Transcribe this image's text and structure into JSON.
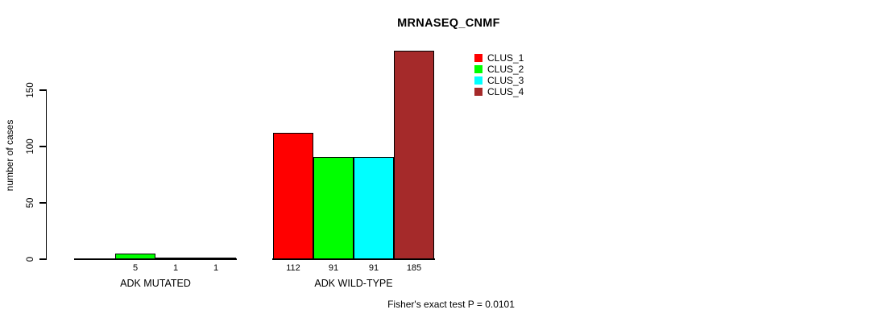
{
  "chart_data": {
    "type": "bar",
    "title": "MRNASEQ_CNMF",
    "xlabel": "",
    "ylabel": "number of cases",
    "ylim": [
      0,
      185
    ],
    "yticks": [
      0,
      50,
      100,
      150
    ],
    "categories": [
      "ADK MUTATED",
      "ADK WILD-TYPE"
    ],
    "series": [
      {
        "name": "CLUS_1",
        "color": "#FF0000",
        "values": [
          0,
          112
        ]
      },
      {
        "name": "CLUS_2",
        "color": "#00FF00",
        "values": [
          5,
          91
        ]
      },
      {
        "name": "CLUS_3",
        "color": "#00FFFF",
        "values": [
          1,
          91
        ]
      },
      {
        "name": "CLUS_4",
        "color": "#A52A2A",
        "values": [
          1,
          185
        ]
      }
    ],
    "bar_value_labels": [
      "",
      "5",
      "1",
      "1",
      "112",
      "91",
      "91",
      "185"
    ],
    "zero_value_label_hidden": true,
    "grid": false,
    "legend_position": "top-right-inside",
    "legend_entries": [
      "CLUS_1",
      "CLUS_2",
      "CLUS_3",
      "CLUS_4"
    ],
    "annotation": "Fisher's exact test P = 0.0101",
    "bar_border_color": "#000000",
    "background_color": "#FFFFFF"
  }
}
